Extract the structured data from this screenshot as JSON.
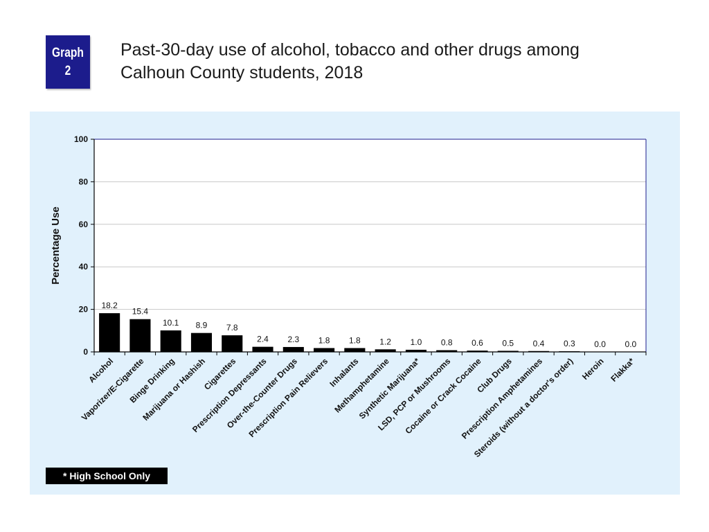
{
  "badge": {
    "line1": "Graph",
    "line2": "2"
  },
  "title": "Past-30-day use of alcohol, tobacco and other drugs among\nCalhoun County students, 2018",
  "footnote": "* High School Only",
  "colors": {
    "badge": "#1c1c8c",
    "panel": "#e1f1fc",
    "bar": "#000000",
    "frame": "#1c1c8c"
  },
  "chart_data": {
    "type": "bar",
    "title": "",
    "xlabel": "",
    "ylabel": "Percentage Use",
    "ylim": [
      0,
      100
    ],
    "yticks": [
      "0",
      "20",
      "40",
      "60",
      "80",
      "100"
    ],
    "grid": true,
    "legend": "none",
    "categories": [
      "Alcohol",
      "Vaporizer/E-Cigarette",
      "Binge Drinking",
      "Marijuana or Hashish",
      "Cigarettes",
      "Prescription Depressants",
      "Over-the-Counter Drugs",
      "Prescription Pain Relievers",
      "Inhalants",
      "Methamphetamine",
      "Synthetic Marijuana*",
      "LSD, PCP or Mushrooms",
      "Cocaine or Crack Cocaine",
      "Club Drugs",
      "Prescription Amphetamines",
      "Steroids (without a doctor's order)",
      "Heroin",
      "Flakka*"
    ],
    "values": [
      18.2,
      15.4,
      10.1,
      8.9,
      7.8,
      2.4,
      2.3,
      1.8,
      1.8,
      1.2,
      1.0,
      0.8,
      0.6,
      0.5,
      0.4,
      0.3,
      0.0,
      0.0
    ],
    "value_labels": [
      "18.2",
      "15.4",
      "10.1",
      "8.9",
      "7.8",
      "2.4",
      "2.3",
      "1.8",
      "1.8",
      "1.2",
      "1.0",
      "0.8",
      "0.6",
      "0.5",
      "0.4",
      "0.3",
      "0.0",
      "0.0"
    ]
  }
}
